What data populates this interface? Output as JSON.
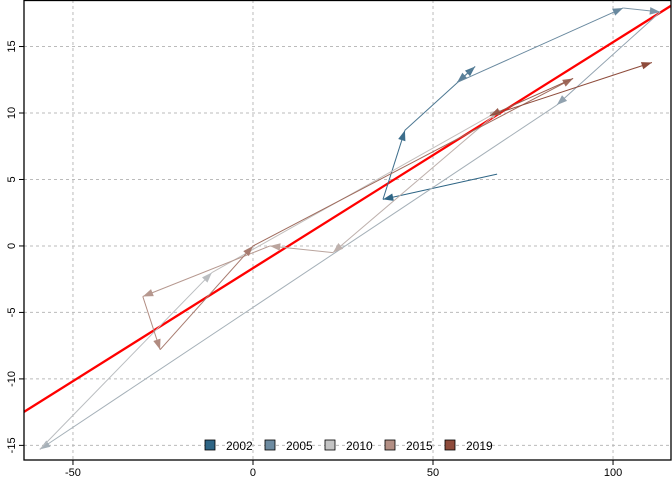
{
  "chart_data": {
    "type": "line",
    "title": "",
    "xlabel": "",
    "ylabel": "",
    "xlim": [
      -63.6,
      116.1
    ],
    "ylim": [
      -16.1,
      18.5
    ],
    "grid": true,
    "legend_placement": "bottom",
    "x_ticks": [
      -50,
      0,
      50,
      100
    ],
    "y_ticks": [
      -15,
      -10,
      -5,
      0,
      5,
      10,
      15
    ],
    "path": [
      [
        67.8,
        5.4
      ],
      [
        36.1,
        3.5
      ],
      [
        42.2,
        8.7
      ],
      [
        61.7,
        13.5
      ],
      [
        56.7,
        12.3
      ],
      [
        102.8,
        17.9
      ],
      [
        113.1,
        17.6
      ],
      [
        84.4,
        10.6
      ],
      [
        -59.2,
        -15.3
      ],
      [
        -11.4,
        -2.0
      ],
      [
        68.6,
        10.2
      ],
      [
        22.2,
        -0.5
      ],
      [
        4.7,
        0.0
      ],
      [
        -30.6,
        -3.8
      ],
      [
        -25.8,
        -7.8
      ],
      [
        0,
        0
      ],
      [
        88.9,
        12.6
      ],
      [
        65.8,
        9.8
      ],
      [
        110.8,
        13.8
      ]
    ],
    "fit_line": {
      "intercept": -1.67,
      "slope": 0.17,
      "color": "#ff0000"
    },
    "legend": [
      {
        "label": "2002",
        "color": "#2e6585"
      },
      {
        "label": "2005",
        "color": "#6d8ba1"
      },
      {
        "label": "2010",
        "color": "#c4c4c4"
      },
      {
        "label": "2015",
        "color": "#b38f84"
      },
      {
        "label": "2019",
        "color": "#8e4b3b"
      }
    ]
  }
}
